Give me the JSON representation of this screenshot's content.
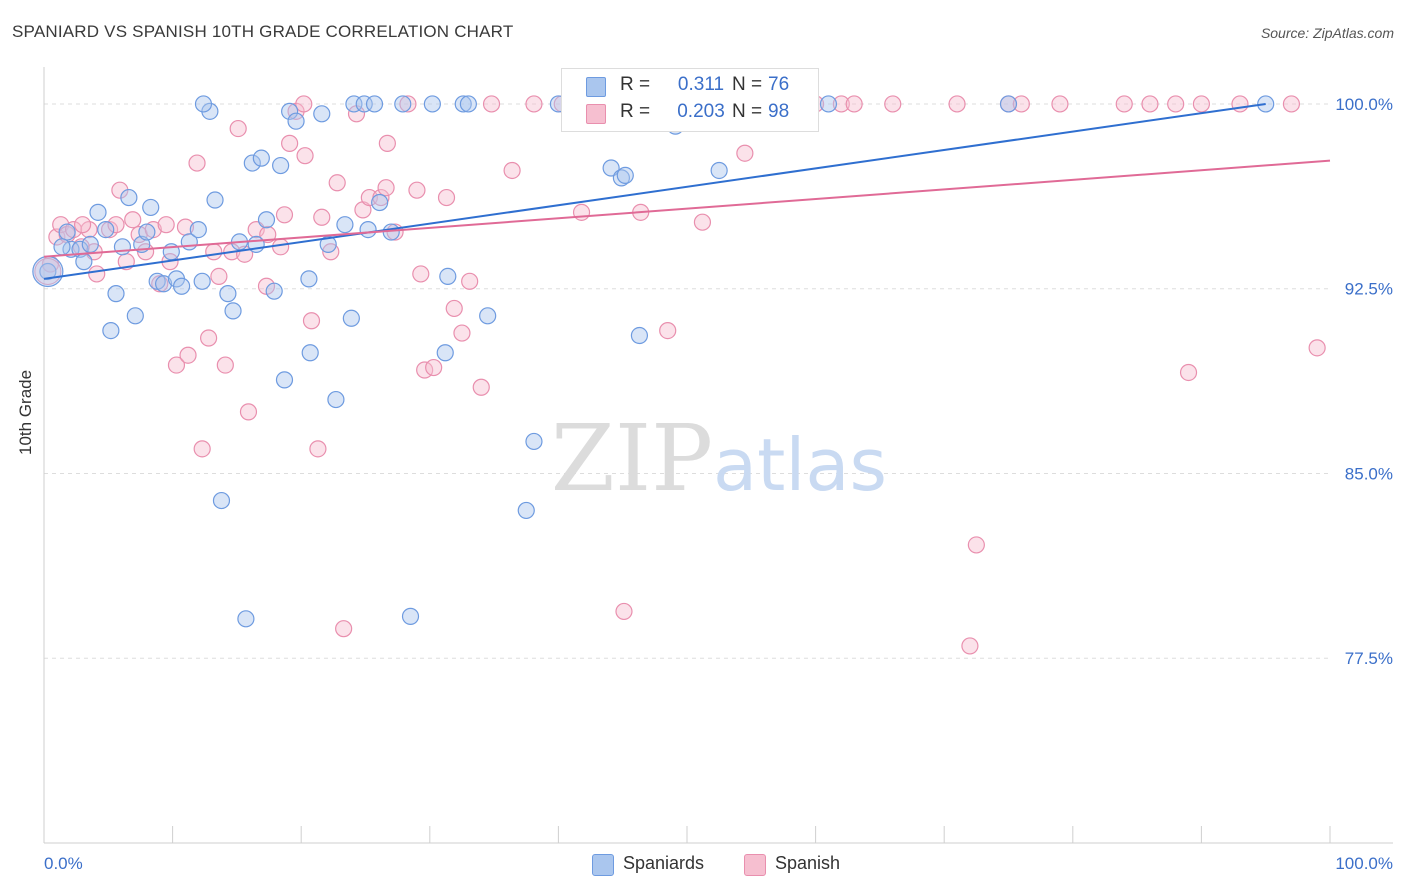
{
  "title": "SPANIARD VS SPANISH 10TH GRADE CORRELATION CHART",
  "source": "Source: ZipAtlas.com",
  "watermark": {
    "zip": "ZIP",
    "atlas": "atlas"
  },
  "colors": {
    "blue_fill": "#aac6ee",
    "blue_stroke": "#6e9be0",
    "blue_line": "#2f6fd0",
    "pink_fill": "#f6bfd0",
    "pink_stroke": "#e98fae",
    "pink_line": "#e06a96",
    "axis_text": "#3b6fc9"
  },
  "legend": {
    "rows": [
      {
        "r_label": "R =",
        "r_value": "0.311",
        "n_label": "N =",
        "n_value": "76"
      },
      {
        "r_label": "R =",
        "r_value": "0.203",
        "n_label": "N =",
        "n_value": "98"
      }
    ]
  },
  "bottom_legend": {
    "series1": "Spaniards",
    "series2": "Spanish"
  },
  "chart_data": {
    "type": "scatter",
    "title": "SPANIARD VS SPANISH 10TH GRADE CORRELATION CHART",
    "xlabel": "",
    "ylabel": "10th Grade",
    "xlim": [
      0,
      100
    ],
    "ylim": [
      70,
      101.5
    ],
    "x_tick_labels": [
      "0.0%",
      "100.0%"
    ],
    "y_ticks": [
      77.5,
      85.0,
      92.5,
      100.0
    ],
    "y_tick_labels": [
      "77.5%",
      "85.0%",
      "92.5%",
      "100.0%"
    ],
    "grid": "horizontal dashed",
    "legend_position": "top-center",
    "series": [
      {
        "name": "Spaniards",
        "R": 0.311,
        "N": 76,
        "trend": [
          [
            0,
            92.9
          ],
          [
            95,
            100.0
          ]
        ],
        "points": [
          [
            0.3,
            93.2
          ],
          [
            1.8,
            94.8
          ],
          [
            2.1,
            94.1
          ],
          [
            2.8,
            94.1
          ],
          [
            3.1,
            93.6
          ],
          [
            4.2,
            95.6
          ],
          [
            4.8,
            94.9
          ],
          [
            5.2,
            90.8
          ],
          [
            5.6,
            92.3
          ],
          [
            6.1,
            94.2
          ],
          [
            6.6,
            96.2
          ],
          [
            7.1,
            91.4
          ],
          [
            7.6,
            94.3
          ],
          [
            8.3,
            95.8
          ],
          [
            8.8,
            92.8
          ],
          [
            9.3,
            92.7
          ],
          [
            9.9,
            94.0
          ],
          [
            10.3,
            92.9
          ],
          [
            10.7,
            92.6
          ],
          [
            11.3,
            94.4
          ],
          [
            12.0,
            94.9
          ],
          [
            12.3,
            92.8
          ],
          [
            12.9,
            99.7
          ],
          [
            13.3,
            96.1
          ],
          [
            14.3,
            92.3
          ],
          [
            14.7,
            91.6
          ],
          [
            15.2,
            94.4
          ],
          [
            16.2,
            97.6
          ],
          [
            16.9,
            97.8
          ],
          [
            17.3,
            95.3
          ],
          [
            17.9,
            92.4
          ],
          [
            18.4,
            97.5
          ],
          [
            18.7,
            88.8
          ],
          [
            19.1,
            99.7
          ],
          [
            19.6,
            99.3
          ],
          [
            20.6,
            92.9
          ],
          [
            20.7,
            89.9
          ],
          [
            21.6,
            99.6
          ],
          [
            22.7,
            88.0
          ],
          [
            23.4,
            95.1
          ],
          [
            23.9,
            91.3
          ],
          [
            24.1,
            100.0
          ],
          [
            24.9,
            100.0
          ],
          [
            25.2,
            94.9
          ],
          [
            25.7,
            100.0
          ],
          [
            26.1,
            96.0
          ],
          [
            27.0,
            94.8
          ],
          [
            27.9,
            100.0
          ],
          [
            30.2,
            100.0
          ],
          [
            31.2,
            89.9
          ],
          [
            31.4,
            93.0
          ],
          [
            32.6,
            100.0
          ],
          [
            33.0,
            100.0
          ],
          [
            34.5,
            91.4
          ],
          [
            38.1,
            86.3
          ],
          [
            40.0,
            100.0
          ],
          [
            44.1,
            97.4
          ],
          [
            44.9,
            97.0
          ],
          [
            45.2,
            97.1
          ],
          [
            46.3,
            90.6
          ],
          [
            49.1,
            99.1
          ],
          [
            52.5,
            97.3
          ],
          [
            56.0,
            100.0
          ],
          [
            61.0,
            100.0
          ],
          [
            75.0,
            100.0
          ],
          [
            95.0,
            100.0
          ],
          [
            13.8,
            83.9
          ],
          [
            15.7,
            79.1
          ],
          [
            28.5,
            79.2
          ],
          [
            37.5,
            83.5
          ],
          [
            1.4,
            94.2
          ],
          [
            3.6,
            94.3
          ],
          [
            8.0,
            94.8
          ],
          [
            12.4,
            100.0
          ],
          [
            16.5,
            94.3
          ],
          [
            22.1,
            94.3
          ]
        ]
      },
      {
        "name": "Spanish",
        "R": 0.203,
        "N": 98,
        "trend": [
          [
            0,
            93.8
          ],
          [
            100,
            97.7
          ]
        ],
        "points": [
          [
            0.5,
            93.5
          ],
          [
            1.0,
            94.6
          ],
          [
            1.3,
            95.1
          ],
          [
            1.8,
            94.7
          ],
          [
            2.3,
            94.9
          ],
          [
            2.9,
            94.2
          ],
          [
            3.5,
            94.9
          ],
          [
            3.9,
            94.0
          ],
          [
            4.1,
            93.1
          ],
          [
            5.1,
            94.9
          ],
          [
            5.6,
            95.1
          ],
          [
            5.9,
            96.5
          ],
          [
            6.4,
            93.6
          ],
          [
            6.9,
            95.3
          ],
          [
            7.4,
            94.7
          ],
          [
            7.9,
            94.0
          ],
          [
            8.5,
            94.9
          ],
          [
            9.0,
            92.7
          ],
          [
            9.5,
            95.1
          ],
          [
            9.8,
            93.6
          ],
          [
            10.3,
            89.4
          ],
          [
            11.0,
            95.0
          ],
          [
            11.2,
            89.8
          ],
          [
            11.9,
            97.6
          ],
          [
            12.3,
            86.0
          ],
          [
            12.8,
            90.5
          ],
          [
            13.6,
            93.0
          ],
          [
            14.1,
            89.4
          ],
          [
            14.6,
            94.0
          ],
          [
            15.1,
            99.0
          ],
          [
            15.6,
            93.9
          ],
          [
            15.9,
            87.5
          ],
          [
            16.5,
            94.9
          ],
          [
            17.3,
            92.6
          ],
          [
            17.4,
            94.7
          ],
          [
            18.4,
            94.2
          ],
          [
            18.7,
            95.5
          ],
          [
            19.1,
            98.4
          ],
          [
            19.6,
            99.7
          ],
          [
            20.3,
            97.9
          ],
          [
            20.8,
            91.2
          ],
          [
            21.3,
            86.0
          ],
          [
            21.6,
            95.4
          ],
          [
            22.3,
            94.0
          ],
          [
            22.8,
            96.8
          ],
          [
            23.3,
            78.7
          ],
          [
            24.3,
            99.6
          ],
          [
            24.8,
            95.7
          ],
          [
            25.3,
            96.2
          ],
          [
            26.2,
            96.2
          ],
          [
            26.6,
            96.6
          ],
          [
            26.7,
            98.4
          ],
          [
            27.3,
            94.8
          ],
          [
            28.3,
            100.0
          ],
          [
            29.0,
            96.5
          ],
          [
            29.3,
            93.1
          ],
          [
            29.6,
            89.2
          ],
          [
            30.3,
            89.3
          ],
          [
            31.3,
            96.2
          ],
          [
            31.9,
            91.7
          ],
          [
            32.5,
            90.7
          ],
          [
            33.1,
            92.8
          ],
          [
            34.0,
            88.5
          ],
          [
            36.4,
            97.3
          ],
          [
            38.1,
            100.0
          ],
          [
            40.3,
            100.0
          ],
          [
            41.8,
            95.6
          ],
          [
            43.0,
            100.0
          ],
          [
            44.0,
            100.0
          ],
          [
            45.1,
            79.4
          ],
          [
            46.4,
            95.6
          ],
          [
            48.5,
            90.8
          ],
          [
            51.2,
            95.2
          ],
          [
            54.5,
            98.0
          ],
          [
            56.4,
            100.0
          ],
          [
            60.0,
            100.0
          ],
          [
            62.0,
            100.0
          ],
          [
            66.0,
            100.0
          ],
          [
            71.0,
            100.0
          ],
          [
            75.0,
            100.0
          ],
          [
            76.0,
            100.0
          ],
          [
            79.0,
            100.0
          ],
          [
            84.0,
            100.0
          ],
          [
            86.0,
            100.0
          ],
          [
            88.0,
            100.0
          ],
          [
            89.0,
            89.1
          ],
          [
            90.0,
            100.0
          ],
          [
            93.0,
            100.0
          ],
          [
            97.0,
            100.0
          ],
          [
            99.0,
            90.1
          ],
          [
            72.0,
            78.0
          ],
          [
            72.5,
            82.1
          ],
          [
            3.0,
            95.1
          ],
          [
            13.2,
            94.0
          ],
          [
            20.2,
            100.0
          ],
          [
            34.8,
            100.0
          ],
          [
            52.0,
            100.0
          ],
          [
            63.0,
            100.0
          ]
        ]
      }
    ]
  }
}
